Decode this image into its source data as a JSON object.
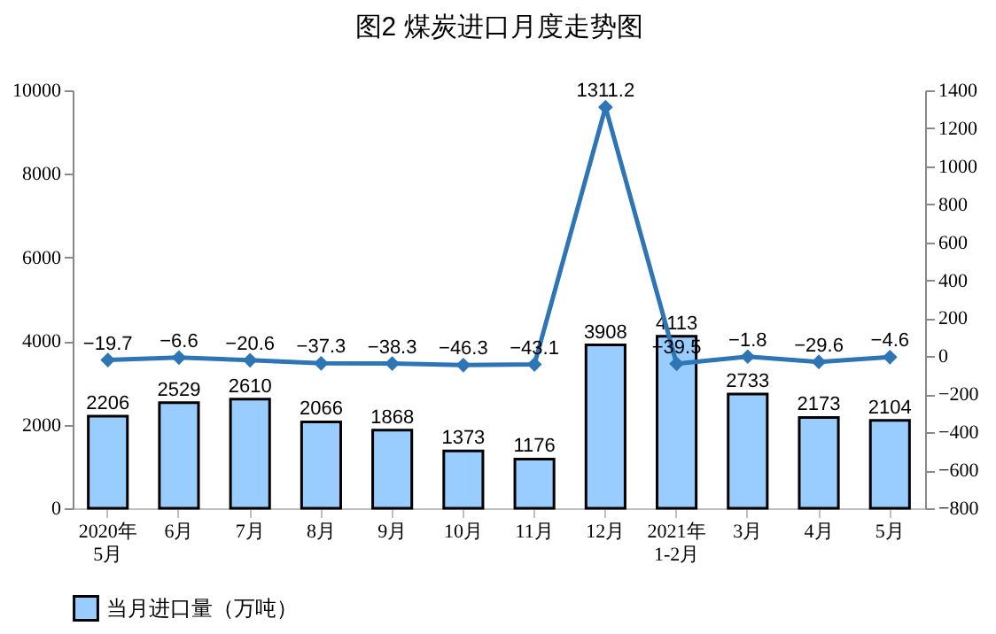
{
  "chart_data": {
    "type": "bar",
    "title": "图2  煤炭进口月度走势图",
    "categories": [
      "2020年\n5月",
      "6月",
      "7月",
      "8月",
      "9月",
      "10月",
      "11月",
      "12月",
      "2021年\n1-2月",
      "3月",
      "4月",
      "5月"
    ],
    "series": [
      {
        "name": "当月进口量（万吨）",
        "color": "#99ccff",
        "values": [
          2206,
          2529,
          2610,
          2066,
          1868,
          1373,
          1176,
          3908,
          4113,
          2733,
          2173,
          2104
        ]
      },
      {
        "type": "line",
        "axis": "y2",
        "color": "#2e75b6",
        "marker": "diamond",
        "values": [
          -19.7,
          -6.6,
          -20.6,
          -37.3,
          -38.3,
          -46.3,
          -43.1,
          1311.2,
          -39.5,
          -1.8,
          -29.6,
          -4.6
        ]
      }
    ],
    "ylim": [
      0,
      10000
    ],
    "yticks": [
      0,
      2000,
      4000,
      6000,
      8000,
      10000
    ],
    "y2lim": [
      -800,
      1400
    ],
    "y2ticks": [
      -800,
      -600,
      -400,
      -200,
      0,
      200,
      400,
      600,
      800,
      1000,
      1200,
      1400
    ],
    "data_labels": true,
    "legend": "bottom"
  }
}
